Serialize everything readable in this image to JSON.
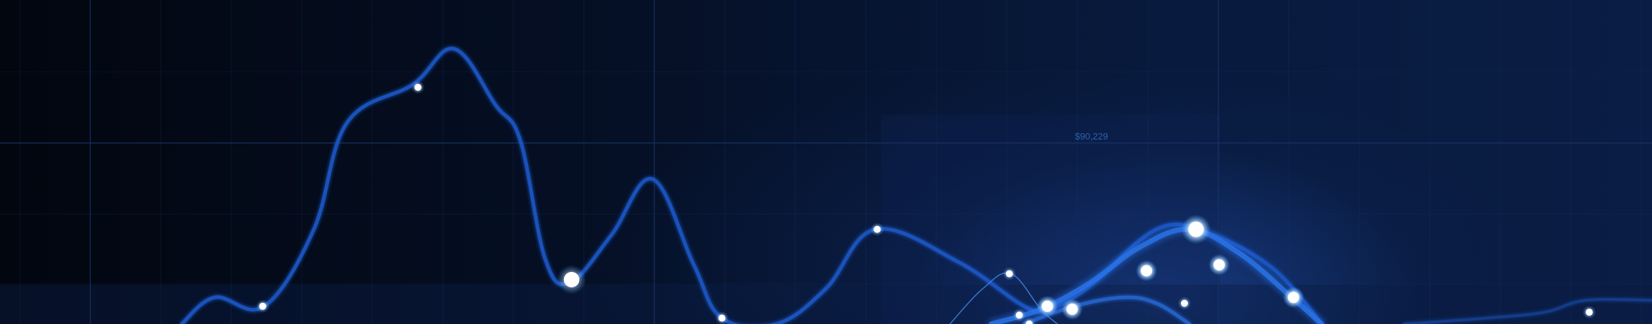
{
  "chart_data": {
    "type": "line",
    "title": "",
    "xlabel": "",
    "ylabel": "",
    "grid": true,
    "legend": "none",
    "annotation": "$90,229",
    "colors": {
      "main_line": "#1f57c4",
      "accent_line": "#2a73e8",
      "marker": "#ffffff",
      "glow": "#4aa3ff",
      "grid": "#1b3566",
      "label": "#2f5fae"
    },
    "series": [
      {
        "values": [
          [
            0.11,
            0.0
          ],
          [
            0.13,
            0.09
          ],
          [
            0.16,
            0.06
          ],
          [
            0.19,
            0.32
          ],
          [
            0.21,
            0.68
          ],
          [
            0.25,
            0.81
          ],
          [
            0.275,
            0.93
          ],
          [
            0.3,
            0.74
          ],
          [
            0.315,
            0.62
          ],
          [
            0.33,
            0.22
          ],
          [
            0.345,
            0.14
          ],
          [
            0.37,
            0.3
          ],
          [
            0.395,
            0.49
          ],
          [
            0.42,
            0.2
          ],
          [
            0.437,
            0.02
          ],
          [
            0.47,
            0.0
          ],
          [
            0.5,
            0.12
          ],
          [
            0.53,
            0.32
          ],
          [
            0.58,
            0.21
          ],
          [
            0.62,
            0.06
          ],
          [
            0.635,
            0.05
          ],
          [
            0.66,
            0.13
          ],
          [
            0.7,
            0.32
          ],
          [
            0.73,
            0.31
          ],
          [
            0.77,
            0.19
          ],
          [
            0.8,
            0.0
          ]
        ],
        "markers": [
          [
            0.159,
            0.06
          ],
          [
            0.253,
            0.8
          ],
          [
            0.346,
            0.15
          ],
          [
            0.437,
            0.02
          ],
          [
            0.531,
            0.32
          ]
        ]
      },
      {
        "values": [
          [
            0.6,
            0.0
          ],
          [
            0.63,
            0.05
          ],
          [
            0.66,
            0.14
          ],
          [
            0.69,
            0.26
          ],
          [
            0.72,
            0.32
          ],
          [
            0.75,
            0.24
          ],
          [
            0.78,
            0.1
          ],
          [
            0.8,
            0.0
          ]
        ],
        "markers": [
          [
            0.634,
            0.06
          ],
          [
            0.649,
            0.05
          ],
          [
            0.694,
            0.18
          ],
          [
            0.724,
            0.32
          ],
          [
            0.738,
            0.2
          ],
          [
            0.783,
            0.09
          ]
        ]
      },
      {
        "values": [
          [
            0.62,
            0.0
          ],
          [
            0.65,
            0.06
          ],
          [
            0.68,
            0.09
          ],
          [
            0.7,
            0.07
          ],
          [
            0.72,
            0.0
          ]
        ],
        "markers": [
          [
            0.623,
            0.0
          ],
          [
            0.717,
            0.07
          ]
        ]
      },
      {
        "values": [
          [
            0.575,
            0.0
          ],
          [
            0.595,
            0.12
          ],
          [
            0.612,
            0.17
          ],
          [
            0.63,
            0.05
          ],
          [
            0.64,
            0.0
          ]
        ],
        "markers": [
          [
            0.611,
            0.17
          ],
          [
            0.617,
            0.03
          ]
        ]
      },
      {
        "values": [
          [
            0.85,
            0.0
          ],
          [
            0.9,
            0.02
          ],
          [
            0.935,
            0.04
          ],
          [
            0.96,
            0.08
          ],
          [
            1.0,
            0.08
          ]
        ],
        "markers": [
          [
            0.962,
            0.04
          ]
        ]
      }
    ]
  }
}
